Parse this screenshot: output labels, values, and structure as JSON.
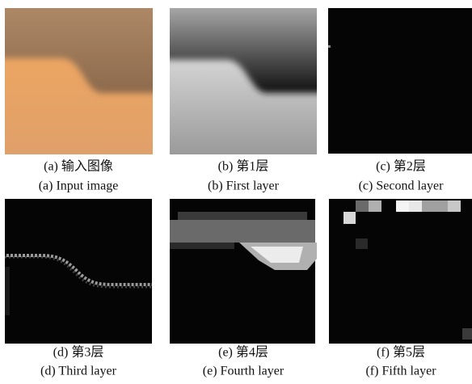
{
  "panels": [
    {
      "caption_cn": "(a) 输入图像",
      "caption_en": "(a) Input image"
    },
    {
      "caption_cn": "(b) 第1层",
      "caption_en": "(b) First layer"
    },
    {
      "caption_cn": "(c) 第2层",
      "caption_en": "(c) Second layer"
    },
    {
      "caption_cn": "(d) 第3层",
      "caption_en": "(d) Third layer"
    },
    {
      "caption_cn": "(e) 第4层",
      "caption_en": "(e) Fourth layer"
    },
    {
      "caption_cn": "(f) 第5层",
      "caption_en": "(f) Fifth layer"
    }
  ]
}
